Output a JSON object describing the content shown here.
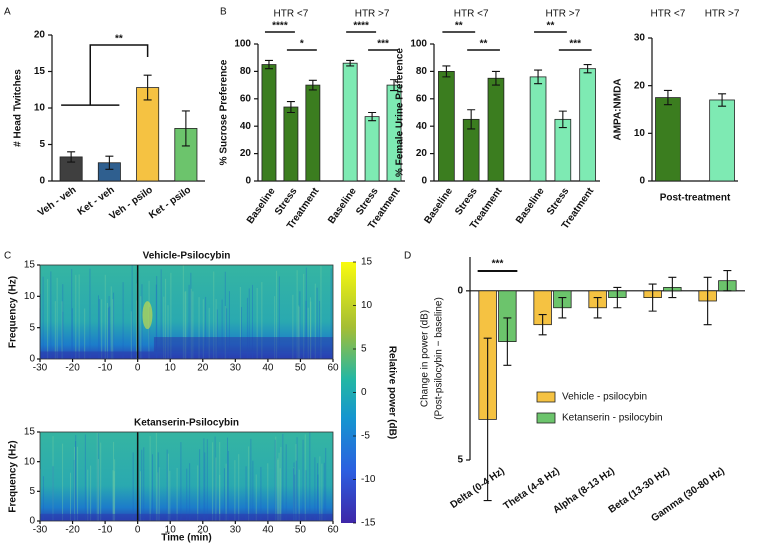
{
  "chart_data": [
    {
      "panel": "A",
      "type": "bar",
      "ylabel": "# Head Twitches",
      "categories": [
        "Veh - veh",
        "Ket - veh",
        "Veh - psilo",
        "Ket - psilo"
      ],
      "values": [
        3.3,
        2.5,
        12.8,
        7.2
      ],
      "errors": [
        0.7,
        0.9,
        1.7,
        2.4
      ],
      "colors": [
        "#3f3f3f",
        "#2f5f8f",
        "#f5c242",
        "#6cc46c"
      ],
      "ylim": [
        0,
        20
      ],
      "yticks": [
        0,
        5,
        10,
        15,
        20
      ],
      "annotations": [
        "**"
      ]
    },
    {
      "panel": "B",
      "type": "bar",
      "ylabel": "% Sucrose Preference",
      "ylim": [
        0,
        100
      ],
      "yticks": [
        0,
        20,
        40,
        60,
        80,
        100
      ],
      "groups": [
        {
          "name": "HTR <7",
          "color": "#3b7d1f",
          "categories": [
            "Baseline",
            "Stress",
            "Treatment"
          ],
          "values": [
            85,
            54,
            70
          ],
          "errors": [
            3,
            4,
            3.5
          ],
          "annotations": [
            "****",
            "*"
          ]
        },
        {
          "name": "HTR >7",
          "color": "#7eeab3",
          "categories": [
            "Baseline",
            "Stress",
            "Treatment"
          ],
          "values": [
            86,
            47,
            70
          ],
          "errors": [
            2,
            3,
            4
          ],
          "annotations": [
            "****",
            "***"
          ]
        }
      ]
    },
    {
      "type": "bar",
      "ylabel": "% Female Urine Preference",
      "ylim": [
        0,
        100
      ],
      "yticks": [
        0,
        20,
        40,
        60,
        80,
        100
      ],
      "groups": [
        {
          "name": "HTR <7",
          "color": "#3b7d1f",
          "categories": [
            "Baseline",
            "Stress",
            "Treatment"
          ],
          "values": [
            80,
            45,
            75
          ],
          "errors": [
            4,
            7,
            5
          ],
          "annotations": [
            "**",
            "**"
          ]
        },
        {
          "name": "HTR >7",
          "color": "#7eeab3",
          "categories": [
            "Baseline",
            "Stress",
            "Treatment"
          ],
          "values": [
            76,
            45,
            82
          ],
          "errors": [
            5,
            6,
            3
          ],
          "annotations": [
            "**",
            "***"
          ]
        }
      ]
    },
    {
      "type": "bar",
      "ylabel": "AMPA:NMDA",
      "xlabel": "Post-treatment",
      "ylim": [
        0,
        30
      ],
      "yticks": [
        0,
        10,
        20,
        30
      ],
      "groups": [
        {
          "name": "HTR <7",
          "color": "#3b7d1f",
          "values": [
            17.5
          ],
          "errors": [
            1.5
          ]
        },
        {
          "name": "HTR >7",
          "color": "#7eeab3",
          "values": [
            17
          ],
          "errors": [
            1.3
          ]
        }
      ]
    },
    {
      "panel": "C",
      "type": "heatmap",
      "panels": [
        {
          "title": "Vehicle-Psilocybin"
        },
        {
          "title": "Ketanserin-Psilocybin"
        }
      ],
      "xlabel": "Time (min)",
      "ylabel": "Frequency (Hz)",
      "xlim": [
        -30,
        60
      ],
      "xticks": [
        -30,
        -20,
        -10,
        0,
        10,
        20,
        30,
        40,
        50,
        60
      ],
      "ylim": [
        0,
        15
      ],
      "yticks": [
        0,
        5,
        10,
        15
      ],
      "colorbar": {
        "label": "Relative power (dB)",
        "lim": [
          -15,
          15
        ],
        "ticks": [
          15,
          10,
          5,
          0,
          -5,
          -10,
          -15
        ]
      }
    },
    {
      "panel": "D",
      "type": "bar",
      "inverted": true,
      "ylabel": [
        "Change in power (dB)",
        "(Post-psilocybin − baseline)"
      ],
      "categories": [
        "Delta (0-4 Hz)",
        "Theta (4-8 Hz)",
        "Alpha (8-13 Hz)",
        "Beta (13-30 Hz)",
        "Gamma (30-80 Hz)"
      ],
      "series": [
        {
          "name": "Vehicle - psilocybin",
          "color": "#f5c242",
          "values": [
            3.8,
            1.0,
            0.5,
            0.2,
            0.3
          ],
          "errors": [
            2.4,
            0.3,
            0.3,
            0.4,
            0.7
          ]
        },
        {
          "name": "Ketanserin - psilocybin",
          "color": "#6cc46c",
          "values": [
            1.5,
            0.5,
            0.2,
            -0.1,
            -0.3
          ],
          "errors": [
            0.7,
            0.3,
            0.3,
            0.3,
            0.3
          ]
        }
      ],
      "ylim": [
        -1,
        5
      ],
      "yticks": [
        0,
        5
      ],
      "annotations": [
        "***"
      ]
    }
  ]
}
